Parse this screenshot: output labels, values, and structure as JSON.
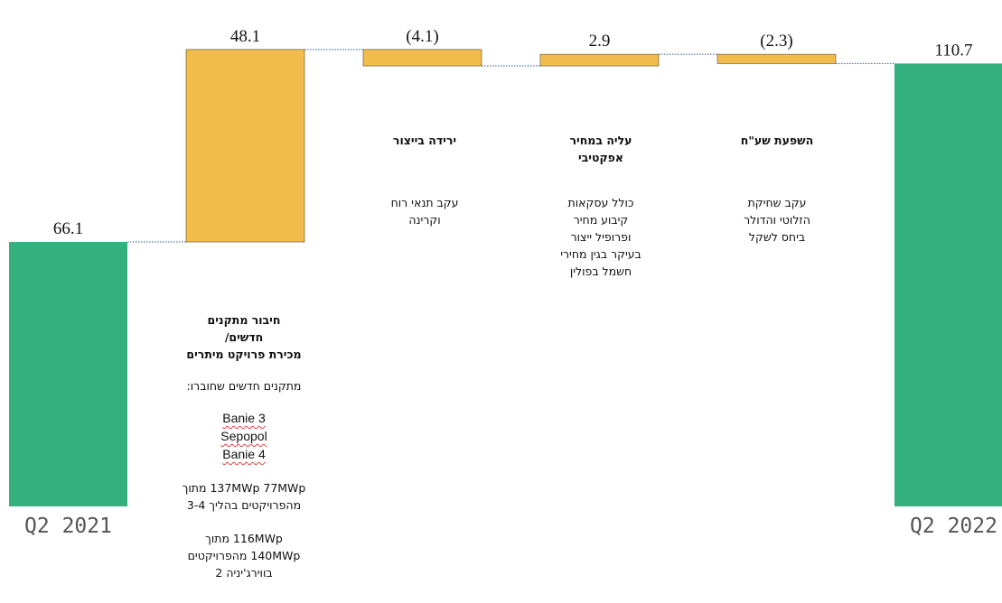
{
  "chart_data": {
    "type": "waterfall",
    "categories": [
      "Q2 2021",
      "",
      "",
      "",
      "",
      "Q2 2022"
    ],
    "steps": [
      {
        "kind": "total",
        "value": 66.1,
        "label": "66.1",
        "color": "#34b07f"
      },
      {
        "kind": "delta",
        "value": 48.1,
        "label": "48.1",
        "color": "#f2bc4d"
      },
      {
        "kind": "delta",
        "value": -4.1,
        "label": "(4.1)",
        "color": "#f2bc4d"
      },
      {
        "kind": "delta",
        "value": 2.9,
        "label": "2.9",
        "color": "#f2bc4d"
      },
      {
        "kind": "delta",
        "value": -2.3,
        "label": "(2.3)",
        "color": "#f2bc4d"
      },
      {
        "kind": "total",
        "value": 110.7,
        "label": "110.7",
        "color": "#34b07f"
      }
    ],
    "ylim": [
      0,
      118
    ],
    "grid": false,
    "connector_color": "#2f5f9a"
  },
  "annotations": {
    "new_installations": {
      "title": [
        "חיבור מתקנים",
        "חדשים/",
        "מכירת פרויקט מיתרים"
      ],
      "intro": "מתקנים חדשים שחוברו:",
      "projects": [
        "Banie 3",
        "Sepopol",
        "Banie 4"
      ],
      "line1": [
        "137MWp 77MWp מתוך",
        "מהפרויקטים בהליך 3-4"
      ],
      "line2": [
        "116MWp מתוך",
        "140MWp מהפרויקטים",
        "בווירג'יניה 2"
      ]
    },
    "production_drop": {
      "title": [
        "ירידה בייצור"
      ],
      "body": [
        "עקב תנאי רוח",
        "וקרינה"
      ]
    },
    "effective_price": {
      "title": [
        "עליה במחיר",
        "אפקטיבי"
      ],
      "body": [
        "כולל עסקאות",
        "קיבוע מחיר",
        "ופרופיל ייצור",
        "בעיקר בגין מחירי",
        "חשמל בפולין"
      ]
    },
    "fx_impact": {
      "title": [
        "השפעת שע\"ח"
      ],
      "body": [
        "עקב שחיקת",
        "הזלוטי והדולר",
        "ביחס לשקל"
      ]
    }
  }
}
